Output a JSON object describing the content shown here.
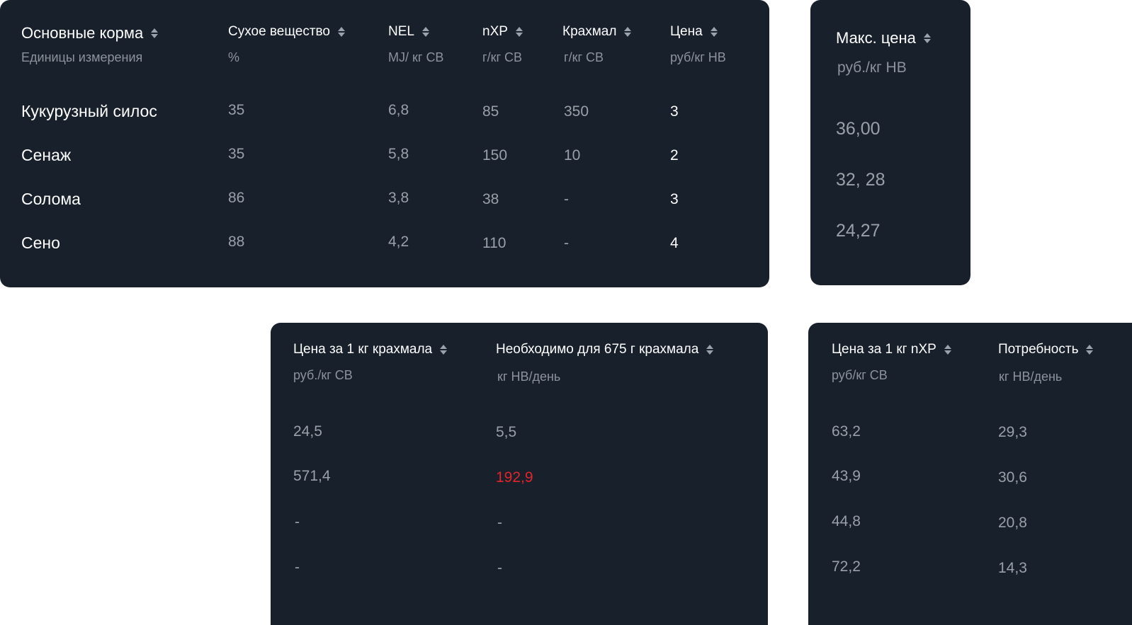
{
  "feeds_table": {
    "headers": [
      {
        "label": "Основные корма",
        "unit": "Единицы измерения"
      },
      {
        "label": "Сухое вещество",
        "unit": "%"
      },
      {
        "label": "NEL",
        "unit": "MJ/ кг СВ"
      },
      {
        "label": "nXP",
        "unit": "г/кг СВ"
      },
      {
        "label": "Крахмал",
        "unit": "г/кг СВ"
      },
      {
        "label": "Цена",
        "unit": "руб/кг НВ"
      }
    ],
    "rows": [
      {
        "name": "Кукурузный силос",
        "dry_matter": "35",
        "nel": "6,8",
        "nxp": "85",
        "starch": "350",
        "price": "3"
      },
      {
        "name": "Сенаж",
        "dry_matter": "35",
        "nel": "5,8",
        "nxp": "150",
        "starch": "10",
        "price": "2"
      },
      {
        "name": "Солома",
        "dry_matter": "86",
        "nel": "3,8",
        "nxp": "38",
        "starch": "-",
        "price": "3"
      },
      {
        "name": "Сено",
        "dry_matter": "88",
        "nel": "4,2",
        "nxp": "110",
        "starch": "-",
        "price": "4"
      }
    ]
  },
  "max_price_table": {
    "header": {
      "label": "Макс. цена",
      "unit": "руб./кг НВ"
    },
    "values": [
      "36,00",
      "32, 28",
      "24,27"
    ]
  },
  "starch_table": {
    "headers": [
      {
        "label": "Цена за 1 кг крахмала",
        "unit": "руб./кг СВ"
      },
      {
        "label": "Необходимо для 675 г крахмала",
        "unit": "кг НВ/день"
      }
    ],
    "rows": [
      {
        "price": "24,5",
        "needed": "5,5",
        "highlight": false
      },
      {
        "price": "571,4",
        "needed": "192,9",
        "highlight": true
      },
      {
        "price": "-",
        "needed": "-",
        "highlight": false
      },
      {
        "price": "-",
        "needed": "-",
        "highlight": false
      }
    ]
  },
  "nxp_table": {
    "headers": [
      {
        "label": "Цена за 1 кг nXP",
        "unit": "руб/кг СВ"
      },
      {
        "label": "Потребность",
        "unit": "кг НВ/день"
      }
    ],
    "rows": [
      {
        "price": "63,2",
        "need": "29,3"
      },
      {
        "price": "43,9",
        "need": "30,6"
      },
      {
        "price": "44,8",
        "need": "20,8"
      },
      {
        "price": "72,2",
        "need": "14,3"
      }
    ]
  },
  "colors": {
    "panel_bg": "#18202b",
    "highlight": "#e3242b",
    "muted_text": "#9aa0a8"
  },
  "icons": {
    "sort": "sort-icon"
  }
}
